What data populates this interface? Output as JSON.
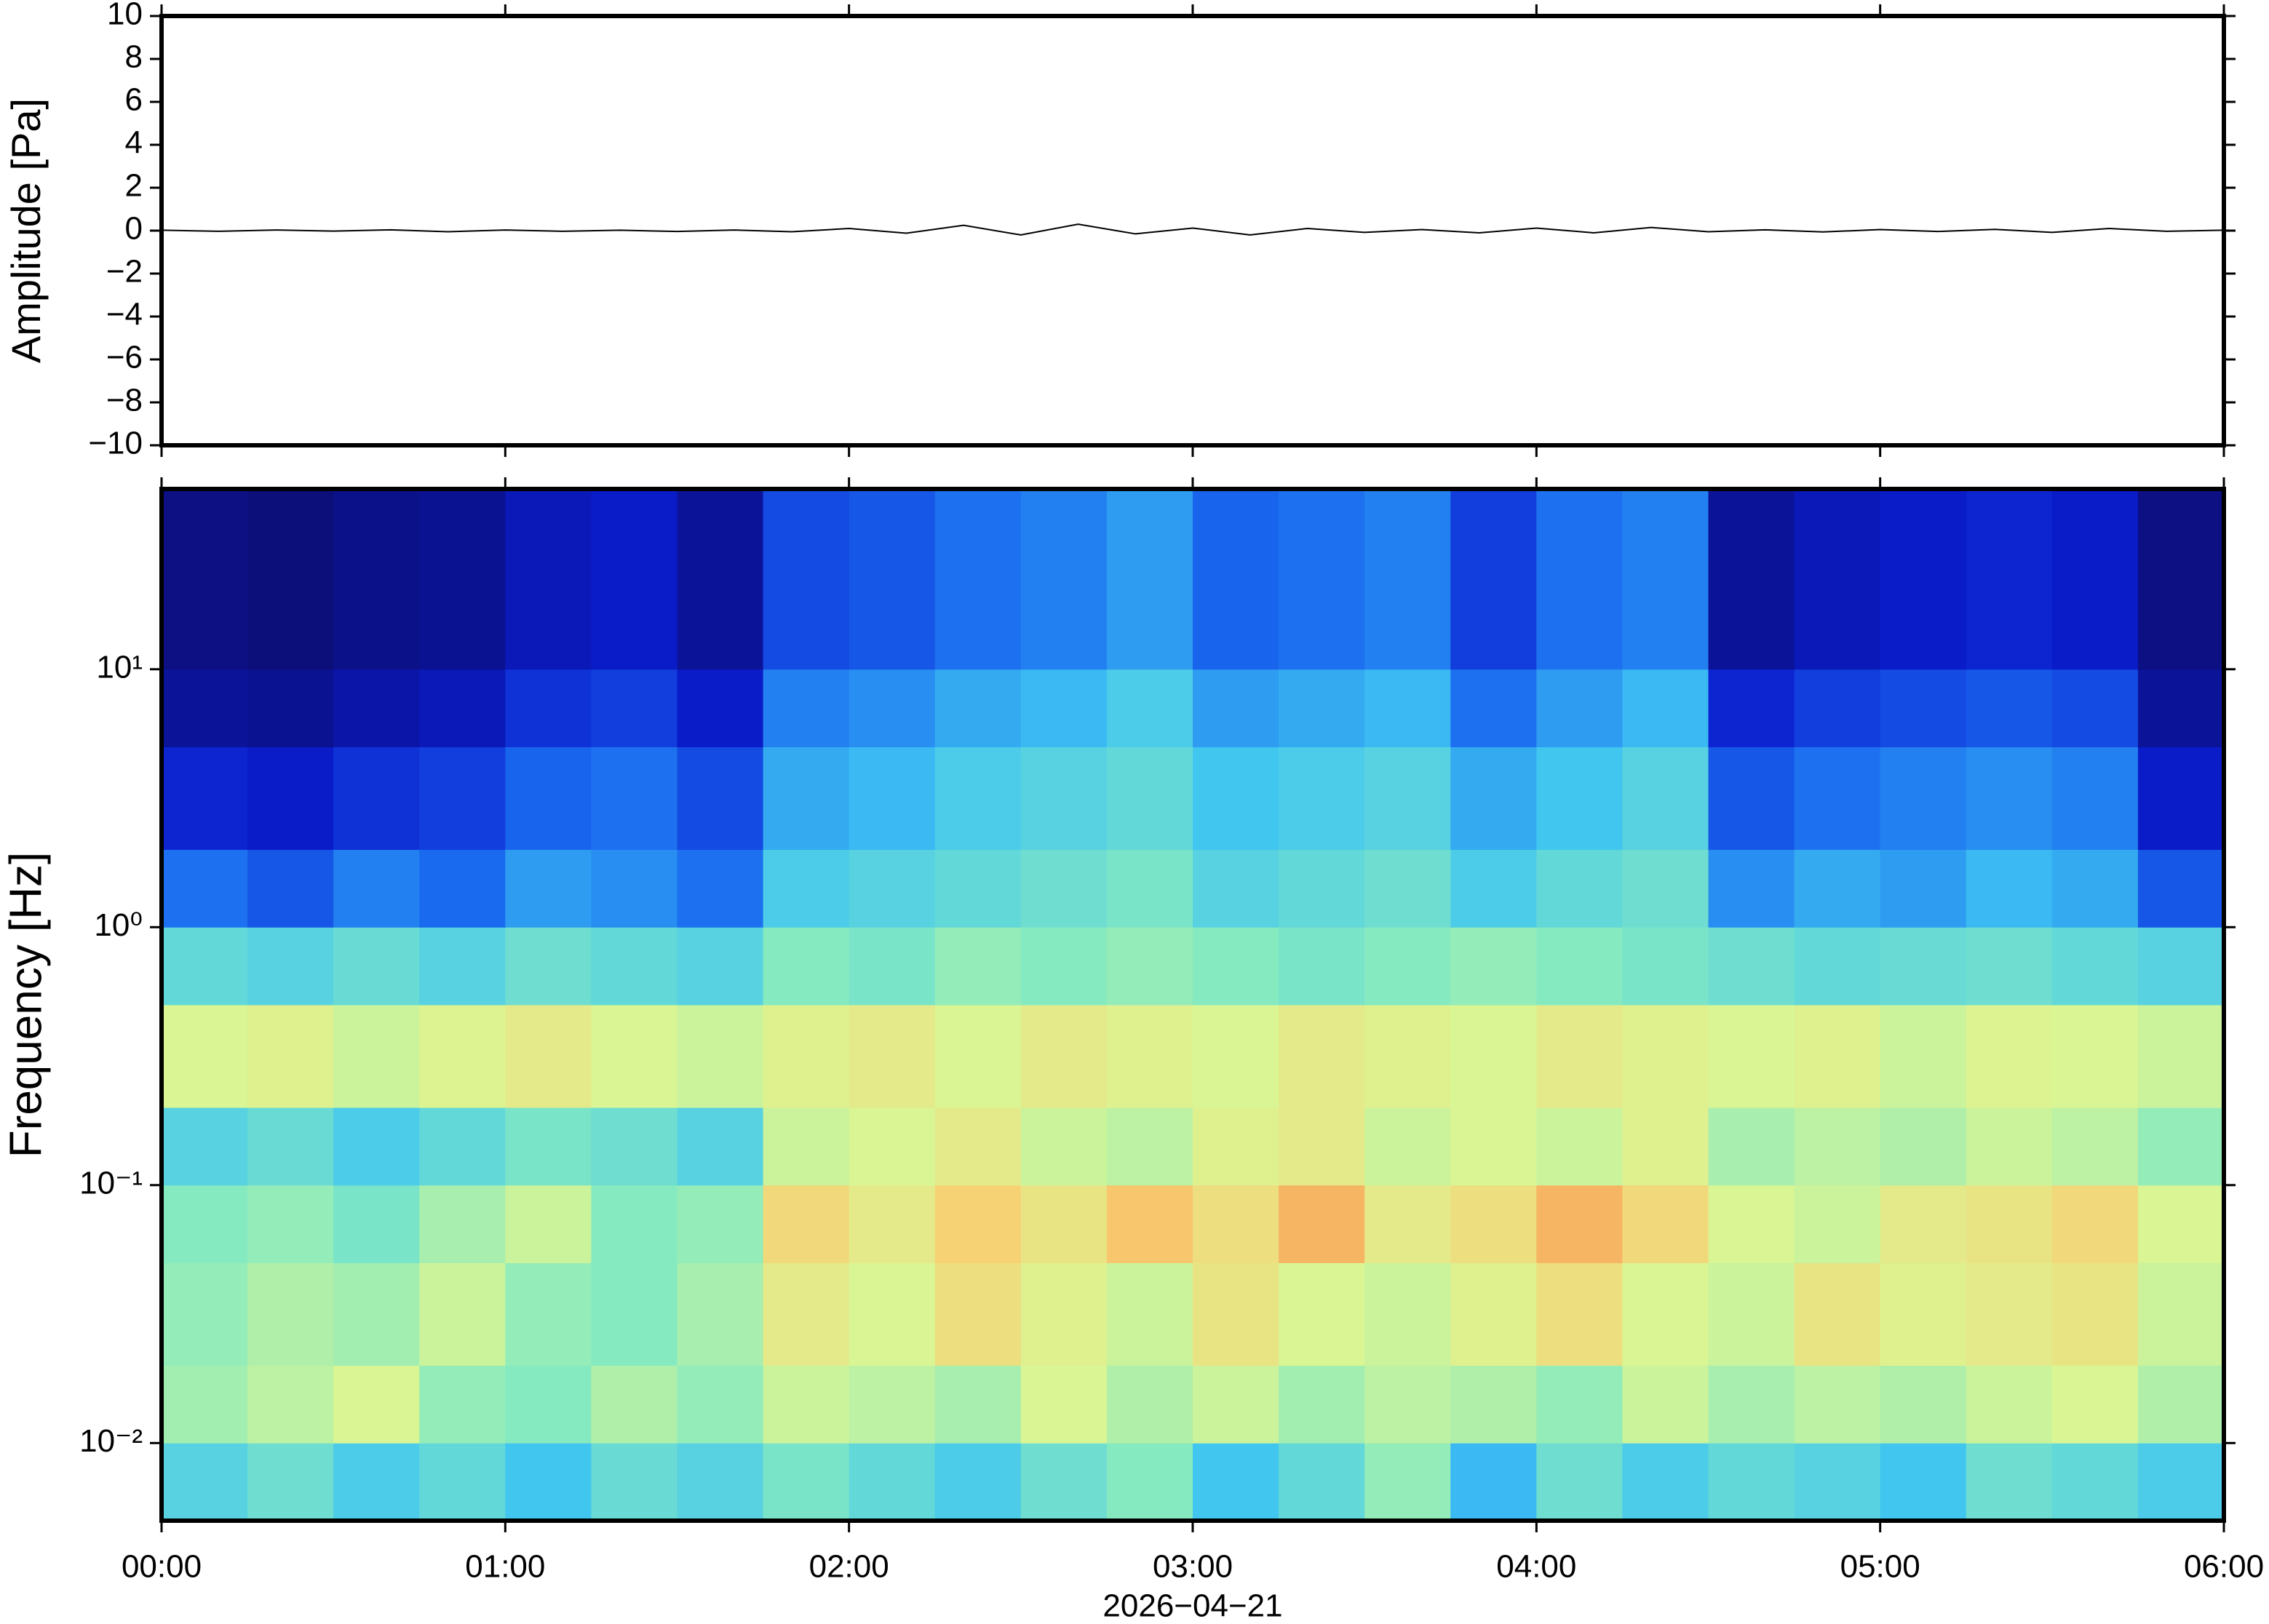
{
  "chart_data": [
    {
      "type": "line",
      "ylabel": "Amplitude [Pa]",
      "x": [
        "00:00",
        "00:10",
        "00:20",
        "00:30",
        "00:40",
        "00:50",
        "01:00",
        "01:10",
        "01:20",
        "01:30",
        "01:40",
        "01:50",
        "02:00",
        "02:10",
        "02:20",
        "02:30",
        "02:40",
        "02:50",
        "03:00",
        "03:10",
        "03:20",
        "03:30",
        "03:40",
        "03:50",
        "04:00",
        "04:10",
        "04:20",
        "04:30",
        "04:40",
        "04:50",
        "05:00",
        "05:10",
        "05:20",
        "05:30",
        "05:40",
        "05:50",
        "06:00"
      ],
      "series": [
        {
          "name": "Amplitude",
          "color": "#000000",
          "values": [
            0.02,
            -0.03,
            0.03,
            -0.02,
            0.04,
            -0.05,
            0.03,
            -0.03,
            0.02,
            -0.04,
            0.03,
            -0.05,
            0.1,
            -0.12,
            0.25,
            -0.2,
            0.3,
            -0.15,
            0.12,
            -0.2,
            0.1,
            -0.08,
            0.05,
            -0.1,
            0.12,
            -0.1,
            0.15,
            -0.05,
            0.04,
            -0.06,
            0.05,
            -0.04,
            0.06,
            -0.08,
            0.1,
            -0.03,
            0.02
          ]
        }
      ],
      "xlim": [
        "00:00",
        "06:00"
      ],
      "ylim": [
        -10,
        10
      ],
      "yticks": [
        {
          "value": -10,
          "label": "−10"
        },
        {
          "value": -8,
          "label": "−8"
        },
        {
          "value": -6,
          "label": "−6"
        },
        {
          "value": -4,
          "label": "−4"
        },
        {
          "value": -2,
          "label": "−2"
        },
        0,
        2,
        4,
        6,
        8,
        10
      ]
    },
    {
      "type": "heatmap",
      "ylabel": "Frequency [Hz]",
      "xlabel": "2026−04−21",
      "x": [
        "00:00",
        "00:15",
        "00:30",
        "00:45",
        "01:00",
        "01:15",
        "01:30",
        "01:45",
        "02:00",
        "02:15",
        "02:30",
        "02:45",
        "03:00",
        "03:15",
        "03:30",
        "03:45",
        "04:00",
        "04:15",
        "04:30",
        "04:45",
        "05:00",
        "05:15",
        "05:30",
        "05:45"
      ],
      "y_bins": [
        0.005,
        0.01,
        0.02,
        0.05,
        0.1,
        0.2,
        0.5,
        1,
        2,
        5,
        10,
        50
      ],
      "values": [
        [
          0.42,
          0.46,
          0.4,
          0.44,
          0.38,
          0.45,
          0.42,
          0.48,
          0.44,
          0.4,
          0.46,
          0.5,
          0.38,
          0.44,
          0.52,
          0.36,
          0.46,
          0.4,
          0.44,
          0.42,
          0.38,
          0.46,
          0.44,
          0.4
        ],
        [
          0.54,
          0.58,
          0.62,
          0.52,
          0.5,
          0.56,
          0.52,
          0.6,
          0.58,
          0.55,
          0.62,
          0.56,
          0.6,
          0.54,
          0.58,
          0.56,
          0.52,
          0.6,
          0.55,
          0.58,
          0.56,
          0.6,
          0.62,
          0.56
        ],
        [
          0.52,
          0.56,
          0.54,
          0.6,
          0.52,
          0.5,
          0.55,
          0.66,
          0.62,
          0.7,
          0.64,
          0.6,
          0.68,
          0.62,
          0.6,
          0.64,
          0.7,
          0.62,
          0.6,
          0.68,
          0.64,
          0.66,
          0.68,
          0.6
        ],
        [
          0.5,
          0.52,
          0.48,
          0.55,
          0.6,
          0.5,
          0.52,
          0.72,
          0.66,
          0.74,
          0.68,
          0.76,
          0.7,
          0.78,
          0.66,
          0.7,
          0.78,
          0.72,
          0.62,
          0.6,
          0.66,
          0.68,
          0.72,
          0.62
        ],
        [
          0.42,
          0.45,
          0.4,
          0.44,
          0.48,
          0.46,
          0.42,
          0.6,
          0.62,
          0.66,
          0.6,
          0.58,
          0.64,
          0.66,
          0.6,
          0.62,
          0.6,
          0.64,
          0.55,
          0.58,
          0.56,
          0.6,
          0.58,
          0.52
        ],
        [
          0.62,
          0.64,
          0.6,
          0.63,
          0.66,
          0.62,
          0.6,
          0.64,
          0.66,
          0.62,
          0.66,
          0.64,
          0.62,
          0.66,
          0.64,
          0.62,
          0.66,
          0.64,
          0.62,
          0.64,
          0.6,
          0.63,
          0.62,
          0.6
        ],
        [
          0.44,
          0.42,
          0.45,
          0.42,
          0.46,
          0.44,
          0.42,
          0.5,
          0.48,
          0.52,
          0.5,
          0.52,
          0.5,
          0.48,
          0.5,
          0.52,
          0.5,
          0.48,
          0.46,
          0.44,
          0.45,
          0.46,
          0.44,
          0.42
        ],
        [
          0.26,
          0.22,
          0.28,
          0.25,
          0.32,
          0.3,
          0.26,
          0.4,
          0.42,
          0.44,
          0.46,
          0.48,
          0.42,
          0.44,
          0.46,
          0.4,
          0.44,
          0.46,
          0.3,
          0.34,
          0.32,
          0.36,
          0.34,
          0.22
        ],
        [
          0.14,
          0.12,
          0.16,
          0.18,
          0.24,
          0.26,
          0.2,
          0.34,
          0.36,
          0.4,
          0.42,
          0.44,
          0.38,
          0.4,
          0.42,
          0.34,
          0.38,
          0.42,
          0.22,
          0.26,
          0.28,
          0.3,
          0.28,
          0.12
        ],
        [
          0.06,
          0.05,
          0.08,
          0.1,
          0.16,
          0.18,
          0.12,
          0.28,
          0.3,
          0.34,
          0.36,
          0.4,
          0.32,
          0.34,
          0.36,
          0.26,
          0.32,
          0.36,
          0.14,
          0.18,
          0.2,
          0.22,
          0.2,
          0.06
        ],
        [
          0.03,
          0.02,
          0.04,
          0.05,
          0.1,
          0.12,
          0.06,
          0.2,
          0.22,
          0.26,
          0.28,
          0.32,
          0.24,
          0.26,
          0.28,
          0.18,
          0.26,
          0.28,
          0.06,
          0.1,
          0.12,
          0.14,
          0.12,
          0.03
        ]
      ],
      "colormap": [
        "#0c0c6a",
        "#0a1ccc",
        "#1a6af0",
        "#3ec4f2",
        "#86eac0",
        "#dcf592",
        "#f8cf72",
        "#f06434",
        "#a00000"
      ],
      "xlim": [
        "00:00",
        "06:00"
      ],
      "ylim": [
        0.005,
        50
      ],
      "log_y": true,
      "xticks": [
        "00:00",
        "01:00",
        "02:00",
        "03:00",
        "04:00",
        "05:00",
        "06:00"
      ],
      "yticks": [
        {
          "value": 0.01,
          "label": "10⁻²"
        },
        {
          "value": 0.1,
          "label": "10⁻¹"
        },
        {
          "value": 1,
          "label": "10⁰"
        },
        {
          "value": 10,
          "label": "10¹"
        }
      ]
    }
  ]
}
